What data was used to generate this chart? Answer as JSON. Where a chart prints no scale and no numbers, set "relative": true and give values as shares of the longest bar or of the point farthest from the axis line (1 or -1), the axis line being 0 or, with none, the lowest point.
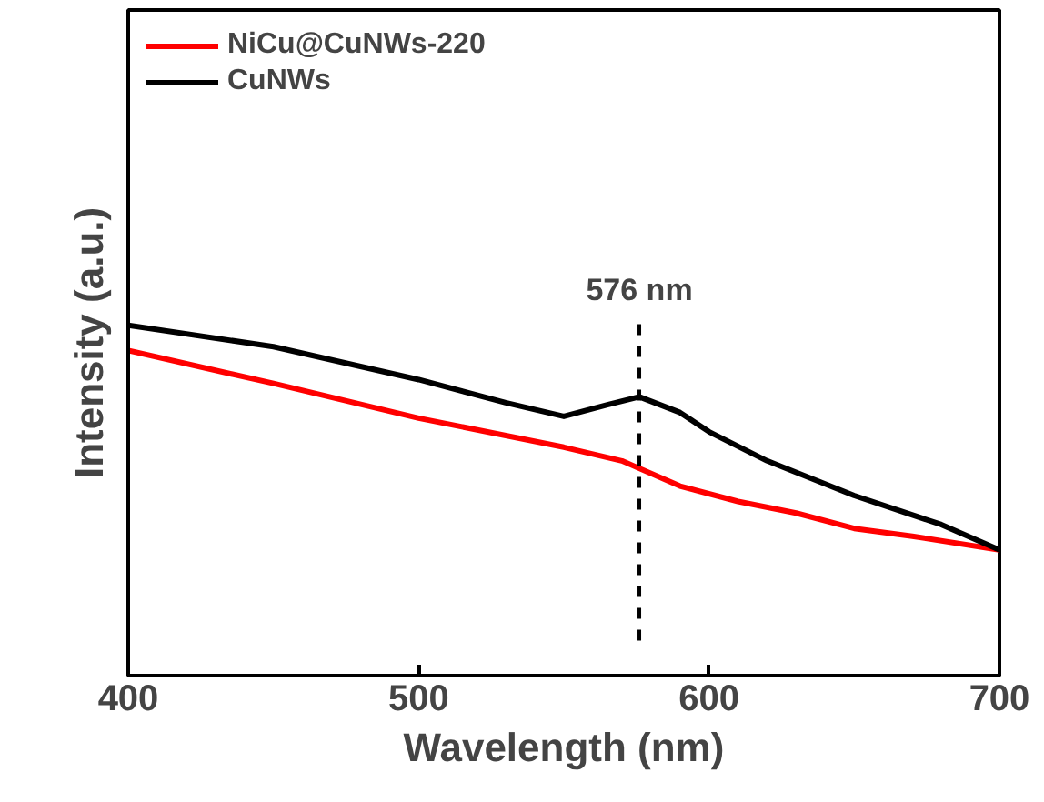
{
  "chart_data": {
    "type": "line",
    "relative": true,
    "xlabel": "Wavelength (nm)",
    "ylabel": "Intensity (a.u.)",
    "xlim": [
      400,
      700
    ],
    "xticks": [
      400,
      500,
      600,
      700
    ],
    "tick_labels": "x",
    "legend": "top left",
    "grid": false,
    "series": [
      {
        "name": "NiCu@CuNWs-220",
        "color": "#ff0000",
        "x": [
          400,
          450,
          500,
          550,
          570,
          590,
          610,
          630,
          650,
          670,
          700
        ],
        "values": [
          0.928,
          0.834,
          0.735,
          0.652,
          0.613,
          0.541,
          0.497,
          0.464,
          0.42,
          0.398,
          0.359
        ]
      },
      {
        "name": "CuNWs",
        "color": "#000000",
        "x": [
          400,
          450,
          500,
          530,
          550,
          565,
          576,
          590,
          600,
          620,
          650,
          680,
          700
        ],
        "values": [
          1.0,
          0.939,
          0.845,
          0.779,
          0.74,
          0.773,
          0.796,
          0.751,
          0.696,
          0.613,
          0.514,
          0.431,
          0.359
        ]
      }
    ],
    "ref_lines": [
      {
        "axis": "x",
        "value": 576,
        "label": "576 nm",
        "color": "#000000",
        "line_style": "dashed"
      }
    ]
  }
}
